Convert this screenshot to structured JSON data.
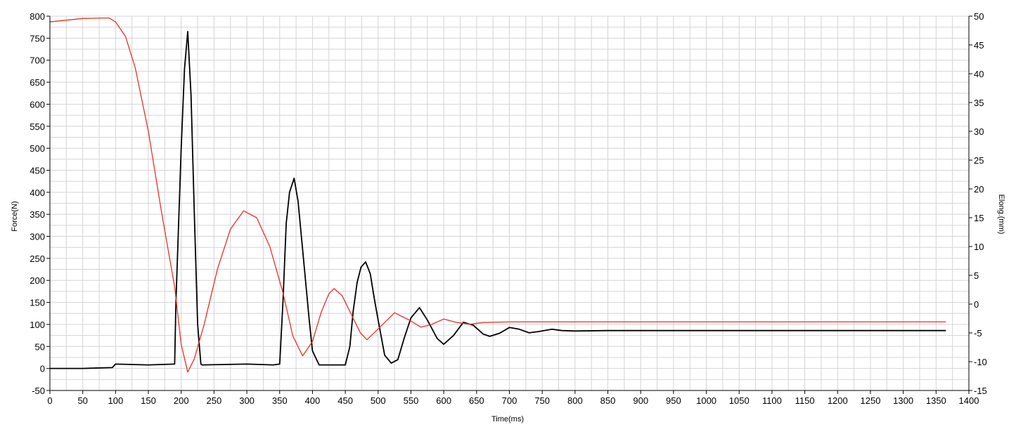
{
  "chart_data": {
    "type": "line",
    "title": "",
    "xlabel": "Time(ms)",
    "ylabel": "Force(N)",
    "y2label": "Elong.(mm)",
    "xlim": [
      0,
      1400
    ],
    "ylim": [
      -50,
      800
    ],
    "y2lim": [
      -15,
      50
    ],
    "x_ticks": [
      0,
      50,
      100,
      150,
      200,
      250,
      300,
      350,
      400,
      450,
      500,
      550,
      600,
      650,
      700,
      750,
      800,
      850,
      900,
      950,
      1000,
      1050,
      1100,
      1150,
      1200,
      1250,
      1300,
      1350,
      1400
    ],
    "y_ticks": [
      -50,
      0,
      50,
      100,
      150,
      200,
      250,
      300,
      350,
      400,
      450,
      500,
      550,
      600,
      650,
      700,
      750,
      800
    ],
    "y2_ticks": [
      -15,
      -10,
      -5,
      0,
      5,
      10,
      15,
      20,
      25,
      30,
      35,
      40,
      45,
      50
    ],
    "grid": true,
    "colors": {
      "force": "#000000",
      "elong": "#e8302a",
      "grid": "#d4d4d4"
    },
    "series": [
      {
        "axis": "left",
        "color": "#000000",
        "x": [
          0,
          50,
          95,
          100,
          150,
          190,
          192,
          200,
          205,
          210,
          215,
          220,
          225,
          230,
          232,
          300,
          340,
          350,
          355,
          360,
          365,
          372,
          378,
          385,
          395,
          400,
          410,
          450,
          457,
          462,
          468,
          474,
          481,
          488,
          494,
          500,
          510,
          520,
          530,
          540,
          550,
          563,
          575,
          590,
          600,
          615,
          630,
          645,
          660,
          670,
          685,
          700,
          715,
          730,
          745,
          765,
          780,
          800,
          850,
          1000,
          1200,
          1365
        ],
        "y": [
          0,
          0,
          2,
          10,
          8,
          10,
          150,
          500,
          680,
          765,
          620,
          350,
          100,
          10,
          8,
          10,
          8,
          10,
          150,
          330,
          400,
          432,
          380,
          270,
          110,
          40,
          8,
          8,
          50,
          130,
          195,
          230,
          242,
          215,
          160,
          110,
          30,
          12,
          20,
          70,
          115,
          138,
          110,
          68,
          55,
          75,
          105,
          98,
          78,
          73,
          80,
          93,
          89,
          81,
          84,
          89,
          86,
          85,
          86,
          86,
          86,
          86
        ]
      },
      {
        "axis": "right",
        "color": "#e8302a",
        "x": [
          0,
          50,
          90,
          100,
          115,
          130,
          150,
          170,
          190,
          200,
          210,
          220,
          235,
          255,
          275,
          295,
          315,
          335,
          355,
          370,
          385,
          400,
          413,
          425,
          433,
          445,
          460,
          473,
          483,
          500,
          525,
          548,
          565,
          580,
          600,
          620,
          640,
          660,
          700,
          800,
          1000,
          1200,
          1365
        ],
        "y": [
          49,
          49.6,
          49.7,
          49,
          46.5,
          41,
          30,
          16,
          3,
          -7,
          -11.8,
          -9.5,
          -3.5,
          6,
          13,
          16.2,
          15,
          10,
          2,
          -5.5,
          -9,
          -6.5,
          -1.5,
          1.8,
          2.7,
          1.5,
          -2,
          -5,
          -6.2,
          -4.3,
          -1.5,
          -2.8,
          -4,
          -3.6,
          -2.6,
          -3.2,
          -3.5,
          -3.2,
          -3.1,
          -3.1,
          -3.1,
          -3.1,
          -3.1
        ]
      }
    ]
  }
}
